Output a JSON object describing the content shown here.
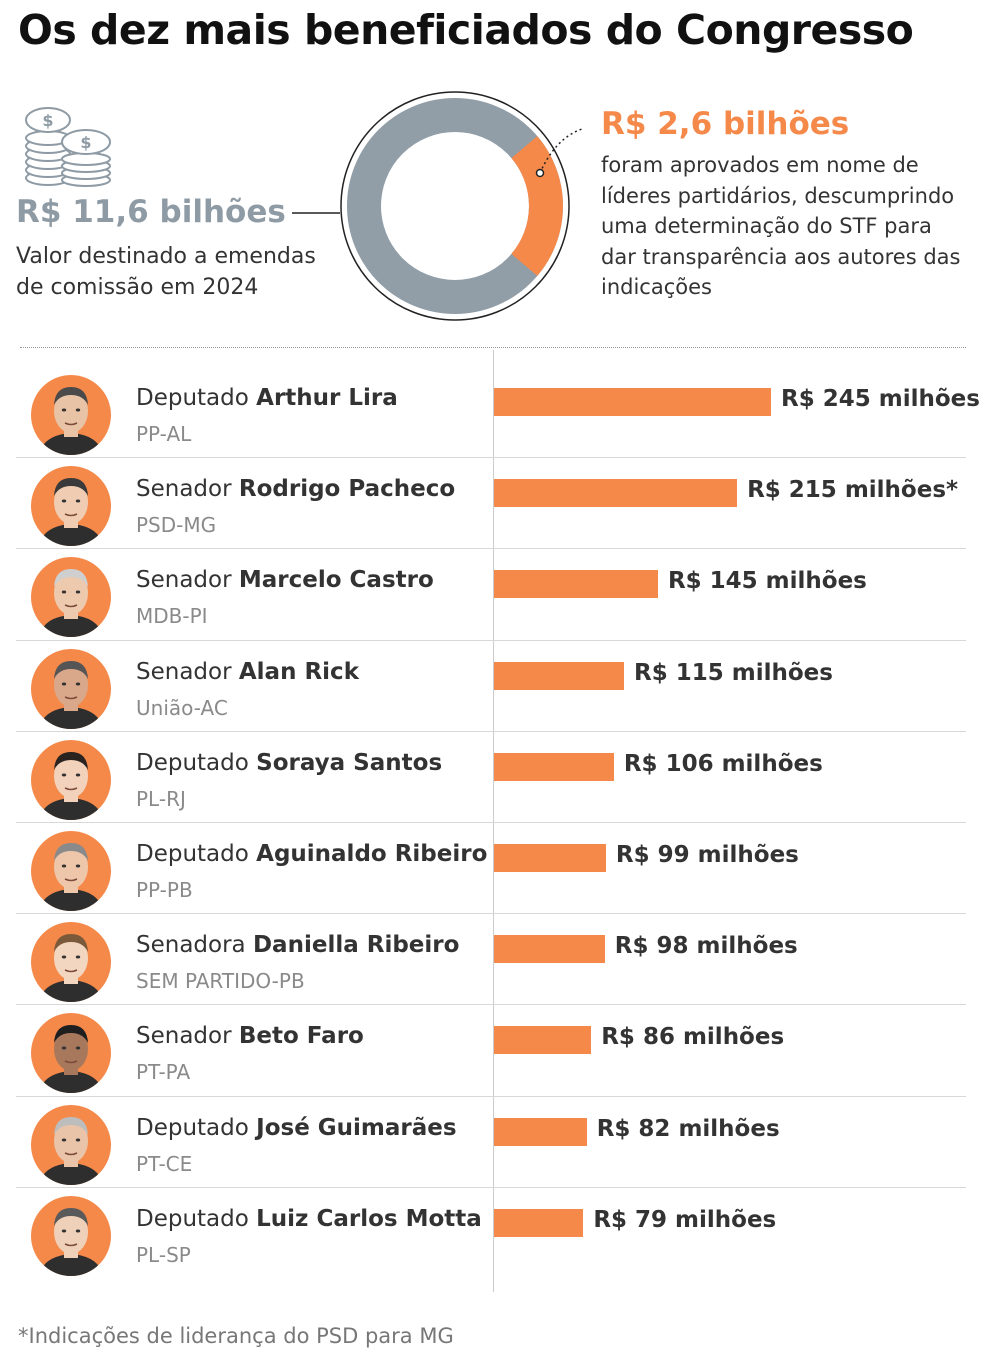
{
  "title": "Os dez mais beneficiados do Congresso",
  "summary": {
    "total_value": "R$ 11,6 bilhões",
    "total_desc": "Valor destinado a emendas de comissão em 2024",
    "leaders_value": "R$ 2,6 bilhões",
    "leaders_desc": "foram aprovados em nome de líderes partidários, descumprindo uma determinação do STF para dar transparência aos autores das indicações",
    "coins_icon": "coins-icon"
  },
  "donut": {
    "total_billions": 11.6,
    "highlight_billions": 2.6,
    "base_color": "#919ea8",
    "highlight_color": "#f5894a"
  },
  "chart_data": {
    "type": "bar",
    "orientation": "horizontal",
    "unit": "R$ milhões",
    "bar_color": "#f5894a",
    "xlim": [
      0,
      245
    ],
    "categories": [
      "Arthur Lira",
      "Rodrigo Pacheco",
      "Marcelo Castro",
      "Alan Rick",
      "Soraya Santos",
      "Aguinaldo Ribeiro",
      "Daniella Ribeiro",
      "Beto Faro",
      "José Guimarães",
      "Luiz Carlos Motta"
    ],
    "values": [
      245,
      215,
      145,
      115,
      106,
      99,
      98,
      86,
      82,
      79
    ],
    "rows": [
      {
        "role": "Deputado",
        "name": "Arthur Lira",
        "party": "PP-AL",
        "value": 245,
        "label": "R$ 245 milhões",
        "avatar": "portrait-arthur-lira"
      },
      {
        "role": "Senador",
        "name": "Rodrigo Pacheco",
        "party": "PSD-MG",
        "value": 215,
        "label": "R$ 215 milhões*",
        "avatar": "portrait-rodrigo-pacheco"
      },
      {
        "role": "Senador",
        "name": "Marcelo Castro",
        "party": "MDB-PI",
        "value": 145,
        "label": "R$ 145 milhões",
        "avatar": "portrait-marcelo-castro"
      },
      {
        "role": "Senador",
        "name": "Alan Rick",
        "party": "União-AC",
        "value": 115,
        "label": "R$ 115 milhões",
        "avatar": "portrait-alan-rick"
      },
      {
        "role": "Deputado",
        "name": "Soraya Santos",
        "party": "PL-RJ",
        "value": 106,
        "label": "R$ 106 milhões",
        "avatar": "portrait-soraya-santos"
      },
      {
        "role": "Deputado",
        "name": "Aguinaldo Ribeiro",
        "party": "PP-PB",
        "value": 99,
        "label": "R$ 99 milhões",
        "avatar": "portrait-aguinaldo-ribeiro"
      },
      {
        "role": "Senadora",
        "name": "Daniella Ribeiro",
        "party": "SEM PARTIDO-PB",
        "value": 98,
        "label": "R$ 98 milhões",
        "avatar": "portrait-daniella-ribeiro"
      },
      {
        "role": "Senador",
        "name": "Beto Faro",
        "party": "PT-PA",
        "value": 86,
        "label": "R$ 86 milhões",
        "avatar": "portrait-beto-faro"
      },
      {
        "role": "Deputado",
        "name": "José Guimarães",
        "party": "PT-CE",
        "value": 82,
        "label": "R$ 82 milhões",
        "avatar": "portrait-jose-guimaraes"
      },
      {
        "role": "Deputado",
        "name": "Luiz Carlos Motta",
        "party": "PL-SP",
        "value": 79,
        "label": "R$ 79 milhões",
        "avatar": "portrait-luiz-carlos-motta"
      }
    ]
  },
  "footnote": "*Indicações de liderança do PSD para MG"
}
